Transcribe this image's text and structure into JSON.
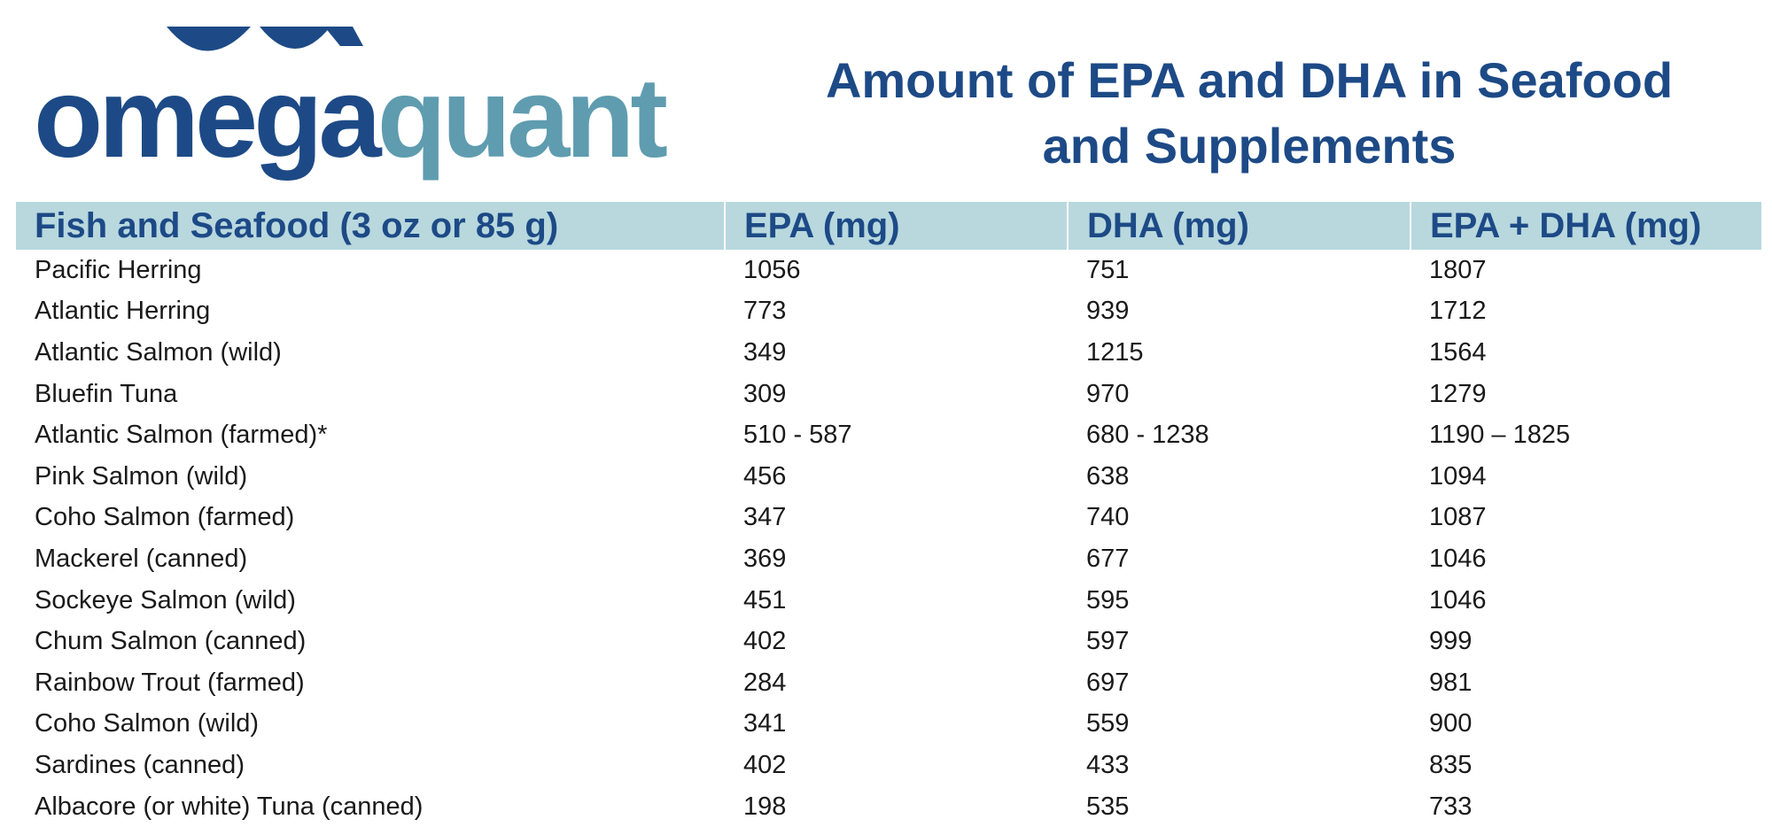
{
  "logo": {
    "text_omega": "omega",
    "text_quant": "quant",
    "colors": {
      "dark": "#1d4a86",
      "light": "#5f9cb0"
    }
  },
  "title": {
    "line1": "Amount of EPA and DHA in Seafood",
    "line2": "and Supplements"
  },
  "table": {
    "headers": [
      "Fish and Seafood (3 oz or 85 g)",
      "EPA (mg)",
      "DHA (mg)",
      "EPA + DHA (mg)"
    ],
    "rows": [
      [
        "Pacific Herring",
        "1056",
        "751",
        "1807"
      ],
      [
        "Atlantic Herring",
        "773",
        "939",
        "1712"
      ],
      [
        "Atlantic Salmon (wild)",
        "349",
        "1215",
        "1564"
      ],
      [
        "Bluefin Tuna",
        "309",
        "970",
        "1279"
      ],
      [
        "Atlantic Salmon (farmed)*",
        "510 - 587",
        "680 - 1238",
        "1190 – 1825"
      ],
      [
        "Pink Salmon (wild)",
        "456",
        "638",
        "1094"
      ],
      [
        "Coho Salmon (farmed)",
        "347",
        "740",
        "1087"
      ],
      [
        "Mackerel (canned)",
        "369",
        "677",
        "1046"
      ],
      [
        "Sockeye Salmon (wild)",
        "451",
        "595",
        "1046"
      ],
      [
        "Chum Salmon (canned)",
        "402",
        "597",
        "999"
      ],
      [
        "Rainbow Trout (farmed)",
        "284",
        "697",
        "981"
      ],
      [
        "Coho Salmon (wild)",
        "341",
        "559",
        "900"
      ],
      [
        "Sardines (canned)",
        "402",
        "433",
        "835"
      ],
      [
        "Albacore (or white) Tuna (canned)",
        "198",
        "535",
        "733"
      ]
    ],
    "header_bg": "#b8d8de",
    "header_color": "#1d4a86"
  }
}
